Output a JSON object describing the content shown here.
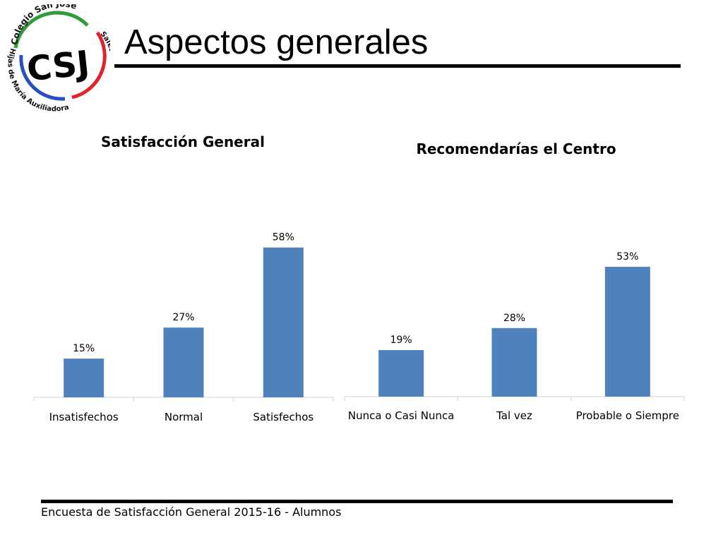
{
  "logo": {
    "monogram": "CSJ",
    "arc_top": "Colegio San José",
    "arc_right": "Salesianas",
    "arc_left": "Hijas de María Auxiliadora",
    "colors": {
      "green": "#2e9c3a",
      "red": "#e0242b",
      "blue": "#2a4fbf"
    }
  },
  "page": {
    "title": "Aspectos generales"
  },
  "footer": {
    "text": "Encuesta  de Satisfacción General 2015-16 - Alumnos"
  },
  "colors": {
    "bar": "#4f81bd",
    "axis": "#d9d9d9"
  },
  "chart_data": [
    {
      "type": "bar",
      "title": "Satisfacción General",
      "categories": [
        "Insatisfechos",
        "Normal",
        "Satisfechos"
      ],
      "values": [
        15,
        27,
        58
      ],
      "labels": [
        "15%",
        "27%",
        "58%"
      ],
      "unit": "%",
      "legend": "none",
      "grid": false
    },
    {
      "type": "bar",
      "title": "Recomendarías el Centro",
      "categories": [
        "Nunca o Casi Nunca",
        "Tal vez",
        "Probable o Siempre"
      ],
      "values": [
        19,
        28,
        53
      ],
      "labels": [
        "19%",
        "28%",
        "53%"
      ],
      "unit": "%",
      "legend": "none",
      "grid": false
    }
  ]
}
